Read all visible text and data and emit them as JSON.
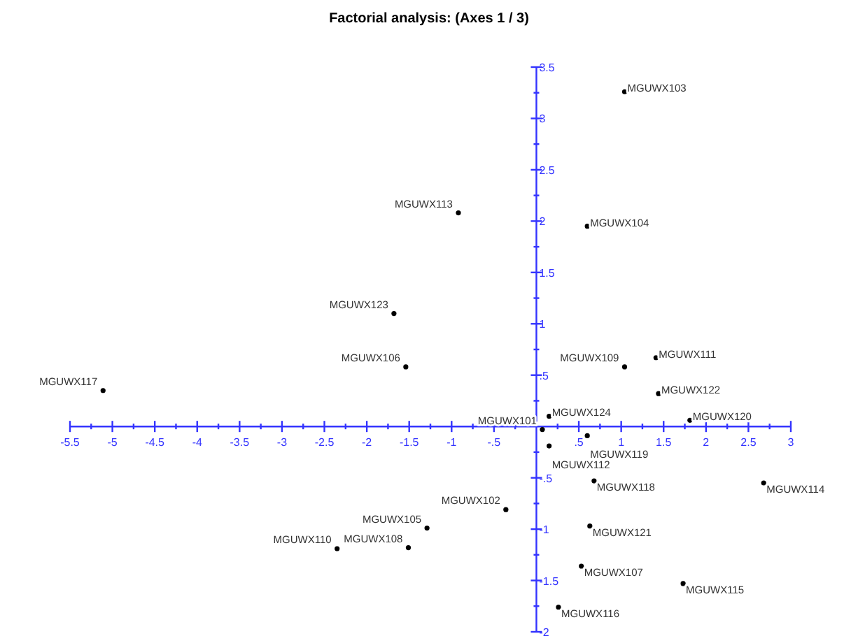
{
  "chart_data": {
    "type": "scatter",
    "title": "Factorial analysis: (Axes 1 / 3)",
    "xlim": [
      -5.5,
      3
    ],
    "ylim": [
      -2,
      3.5
    ],
    "xticks": [
      -5.5,
      -5,
      -4.5,
      -4,
      -3.5,
      -3,
      -2.5,
      -2,
      -1.5,
      -1,
      {
        "value": -0.5,
        "label": "-.5"
      },
      {
        "value": 0.5,
        "label": ".5"
      },
      1,
      1.5,
      2,
      2.5,
      3
    ],
    "yticks": [
      -2,
      -1.5,
      -1,
      {
        "value": -0.5,
        "label": "-.5"
      },
      {
        "value": 0.5,
        "label": ".5"
      },
      1,
      1.5,
      2,
      2.5,
      3,
      3.5
    ],
    "grid": false,
    "marker": "circle",
    "series": [
      {
        "color": "#000000",
        "x": [
          1.04,
          -0.92,
          0.6,
          1.41,
          1.04,
          1.44,
          0.15,
          1.81,
          0.07,
          0.6,
          0.15,
          0.68,
          2.68,
          -0.36,
          -1.29,
          0.63,
          -2.35,
          -1.51,
          0.53,
          1.73,
          0.26,
          -1.68,
          -1.54,
          -5.11
        ],
        "values": [
          3.26,
          2.08,
          1.95,
          0.67,
          0.58,
          0.32,
          0.1,
          0.06,
          -0.03,
          -0.09,
          -0.19,
          -0.53,
          -0.55,
          -0.81,
          -0.99,
          -0.97,
          -1.19,
          -1.18,
          -1.36,
          -1.53,
          -1.76,
          1.1,
          0.58,
          0.35
        ]
      }
    ],
    "annotations": [
      {
        "text": "MGUWX103",
        "x": 1.04,
        "y": 3.26
      },
      {
        "text": "MGUWX113",
        "x": -0.92,
        "y": 2.08
      },
      {
        "text": "MGUWX104",
        "x": 0.6,
        "y": 1.95
      },
      {
        "text": "MGUWX111",
        "x": 1.41,
        "y": 0.67
      },
      {
        "text": "MGUWX109",
        "x": 1.04,
        "y": 0.58
      },
      {
        "text": "MGUWX122",
        "x": 1.44,
        "y": 0.32
      },
      {
        "text": "MGUWX124",
        "x": 0.15,
        "y": 0.1
      },
      {
        "text": "MGUWX120",
        "x": 1.81,
        "y": 0.06
      },
      {
        "text": "MGUWX101",
        "x": 0.07,
        "y": -0.03
      },
      {
        "text": "MGUWX119",
        "x": 0.6,
        "y": -0.09
      },
      {
        "text": "MGUWX112",
        "x": 0.15,
        "y": -0.19
      },
      {
        "text": "MGUWX118",
        "x": 0.68,
        "y": -0.53
      },
      {
        "text": "MGUWX114",
        "x": 2.68,
        "y": -0.55
      },
      {
        "text": "MGUWX102",
        "x": -0.36,
        "y": -0.81
      },
      {
        "text": "MGUWX105",
        "x": -1.29,
        "y": -0.99
      },
      {
        "text": "MGUWX121",
        "x": 0.63,
        "y": -0.97
      },
      {
        "text": "MGUWX110",
        "x": -2.35,
        "y": -1.19
      },
      {
        "text": "MGUWX108",
        "x": -1.51,
        "y": -1.18
      },
      {
        "text": "MGUWX107",
        "x": 0.53,
        "y": -1.36
      },
      {
        "text": "MGUWX115",
        "x": 1.73,
        "y": -1.53
      },
      {
        "text": "MGUWX116",
        "x": 0.26,
        "y": -1.76
      },
      {
        "text": "MGUWX123",
        "x": -1.68,
        "y": 1.1
      },
      {
        "text": "MGUWX106",
        "x": -1.54,
        "y": 0.58
      },
      {
        "text": "MGUWX117",
        "x": -5.11,
        "y": 0.35
      }
    ]
  }
}
